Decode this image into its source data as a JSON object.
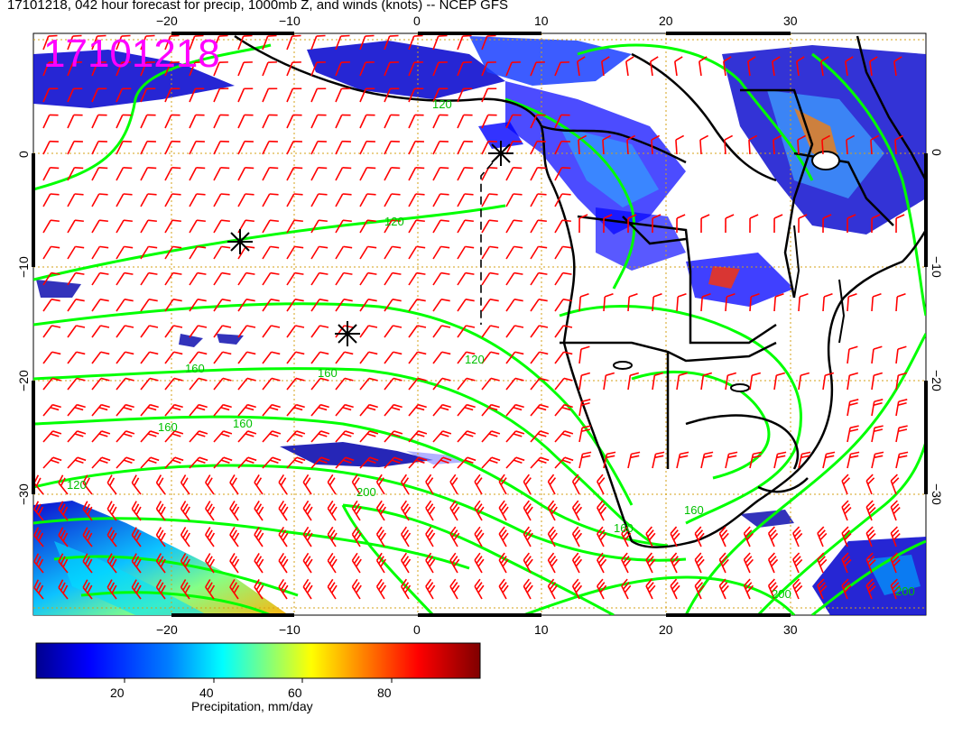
{
  "header": {
    "title": "17101218, 042 hour forecast for precip, 1000mb Z, and winds (knots) -- NCEP GFS",
    "stamp": "17101218"
  },
  "map": {
    "region": "South Atlantic / Southern Africa",
    "lon_range": [
      -30,
      40
    ],
    "lat_range": [
      -40,
      10
    ],
    "lon_ticks_bottom": [
      "−20",
      "−10",
      "0",
      "10",
      "20",
      "30"
    ],
    "lon_ticks_top": [
      "−20",
      "−10",
      "0",
      "10",
      "20",
      "30"
    ],
    "lat_ticks": [
      "0",
      "−10",
      "−20",
      "−30"
    ],
    "contour_labels": [
      "120",
      "160",
      "160",
      "160",
      "160",
      "120",
      "120",
      "160",
      "200",
      "200",
      "120",
      "160",
      "200"
    ],
    "colors": {
      "wind_barbs": "#ff0000",
      "geopotential_contours": "#00ff00",
      "coastlines": "#000000",
      "gridlines": "#d4a017"
    }
  },
  "colorbar": {
    "label": "Precipitation, mm/day",
    "ticks": [
      "20",
      "40",
      "60",
      "80"
    ],
    "range": [
      0,
      100
    ],
    "colormap": [
      "#00008f",
      "#0000ff",
      "#007fff",
      "#00ffff",
      "#7fff7f",
      "#ffff00",
      "#ff7f00",
      "#ff0000",
      "#7f0000"
    ]
  }
}
